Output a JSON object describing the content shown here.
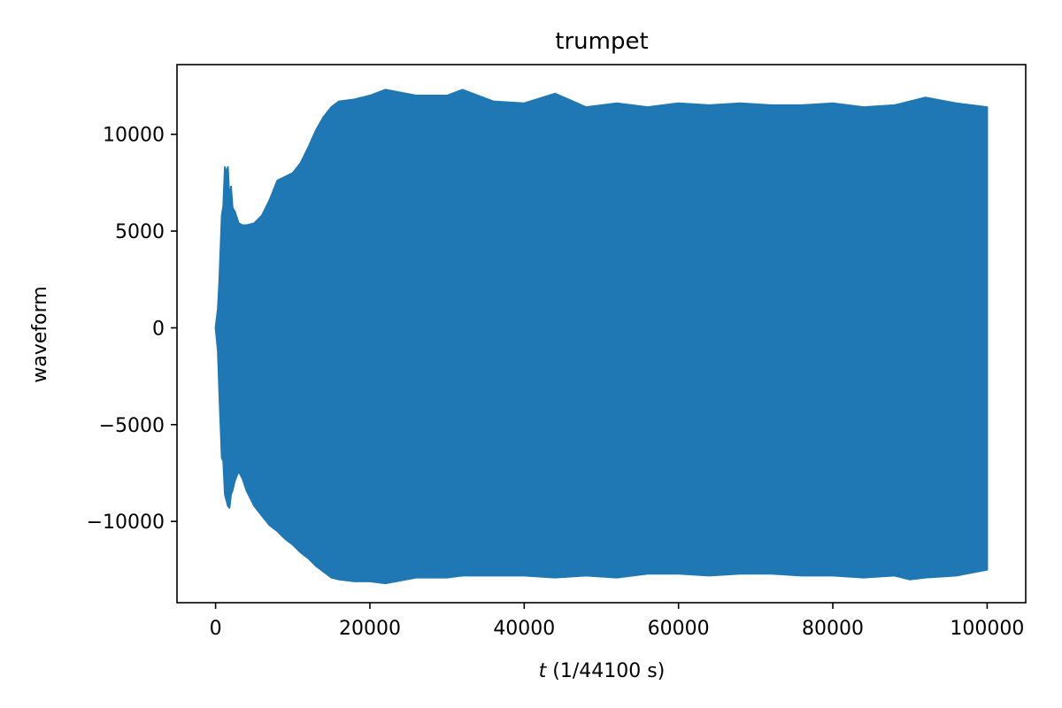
{
  "chart_data": {
    "type": "area",
    "title": "trumpet",
    "xlabel_var": "t",
    "xlabel_rest": " (1/44100 s)",
    "ylabel": "waveform",
    "xlim": [
      -5000,
      105000
    ],
    "ylim": [
      -14200,
      13600
    ],
    "xticks": [
      0,
      20000,
      40000,
      60000,
      80000,
      100000
    ],
    "xtick_labels": [
      "0",
      "20000",
      "40000",
      "60000",
      "80000",
      "100000"
    ],
    "yticks": [
      -10000,
      -5000,
      0,
      5000,
      10000
    ],
    "ytick_labels": [
      "−10000",
      "−5000",
      "0",
      "5000",
      "10000"
    ],
    "grid": false,
    "color": "#1f77b4",
    "series": [
      {
        "x": [
          0,
          300,
          500,
          800,
          1000,
          1200,
          1400,
          1600,
          1800,
          2000,
          2200,
          2500,
          3000,
          3500,
          4000,
          5000,
          6000,
          7000,
          8000,
          9000,
          10000,
          11000,
          12000,
          13000,
          14000,
          15000,
          16000,
          18000,
          20000,
          22000,
          26000,
          30000,
          32000,
          36000,
          40000,
          44000,
          48000,
          52000,
          56000,
          60000,
          64000,
          68000,
          72000,
          76000,
          80000,
          84000,
          88000,
          90000,
          92000,
          96000,
          100000
        ],
        "upper": [
          0,
          1000,
          2500,
          5800,
          6300,
          8300,
          8000,
          8300,
          6500,
          7300,
          6200,
          6000,
          5400,
          5300,
          5300,
          5400,
          5800,
          6600,
          7600,
          7800,
          8000,
          8500,
          9300,
          10200,
          10900,
          11400,
          11700,
          11800,
          12000,
          12300,
          12000,
          12000,
          12300,
          11700,
          11600,
          12100,
          11400,
          11600,
          11400,
          11600,
          11500,
          11600,
          11500,
          11500,
          11600,
          11400,
          11500,
          11700,
          11900,
          11600,
          11400
        ],
        "lower": [
          0,
          -1200,
          -3500,
          -6700,
          -6900,
          -8600,
          -8900,
          -9200,
          -9300,
          -8600,
          -8400,
          -7900,
          -7400,
          -7800,
          -8400,
          -9200,
          -9700,
          -10200,
          -10500,
          -10900,
          -11200,
          -11600,
          -11900,
          -12300,
          -12600,
          -12900,
          -13000,
          -13100,
          -13100,
          -13200,
          -12900,
          -12900,
          -12800,
          -12800,
          -12800,
          -12900,
          -12800,
          -12900,
          -12700,
          -12700,
          -12800,
          -12700,
          -12700,
          -12800,
          -12800,
          -12900,
          -12800,
          -13000,
          -12900,
          -12800,
          -12500
        ]
      }
    ]
  }
}
